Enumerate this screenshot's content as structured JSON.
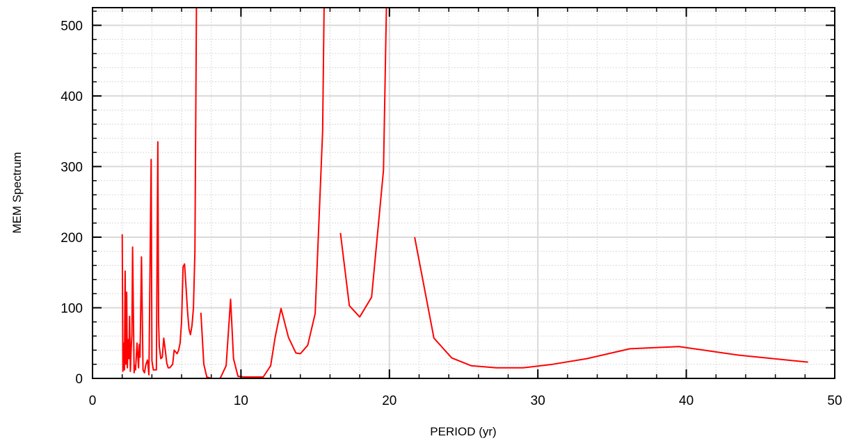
{
  "chart_data": {
    "type": "line",
    "title": "",
    "xlabel": "PERIOD (yr)",
    "ylabel": "MEM Spectrum",
    "xlim": [
      0,
      50
    ],
    "ylim": [
      0,
      525
    ],
    "xticks": [
      0,
      10,
      20,
      30,
      40,
      50
    ],
    "yticks": [
      0,
      100,
      200,
      300,
      400,
      500
    ],
    "grid": true,
    "legend": "none",
    "line_color": "#ff0000",
    "grid_color": "#d9d9d9",
    "segments": [
      {
        "x": [
          2.0,
          2.05,
          2.1,
          2.15,
          2.2,
          2.25,
          2.3,
          2.35,
          2.4,
          2.45,
          2.5,
          2.55,
          2.6,
          2.65,
          2.7,
          2.8,
          2.85,
          2.9,
          3.0,
          3.1,
          3.15,
          3.2,
          3.3,
          3.4,
          3.5,
          3.6,
          3.7,
          3.8,
          3.95,
          4.0,
          4.1,
          4.2,
          4.3,
          4.4,
          4.45,
          4.5,
          4.6,
          4.7,
          4.8,
          4.9,
          5.0,
          5.1,
          5.2,
          5.4,
          5.5,
          5.7,
          5.8,
          5.9,
          6.0,
          6.1,
          6.2,
          6.3,
          6.4,
          6.5,
          6.6,
          6.7,
          6.8,
          6.9,
          7.0,
          7.05,
          7.1,
          7.15
        ],
        "y": [
          204,
          10,
          50,
          12,
          152,
          20,
          122,
          15,
          55,
          28,
          88,
          10,
          40,
          62,
          186,
          8,
          18,
          12,
          50,
          15,
          48,
          30,
          172,
          12,
          8,
          20,
          26,
          5,
          310,
          25,
          12,
          12,
          12,
          335,
          80,
          45,
          28,
          30,
          57,
          40,
          22,
          15,
          15,
          20,
          40,
          35,
          40,
          50,
          80,
          158,
          162,
          130,
          95,
          70,
          62,
          75,
          100,
          180,
          525,
          525,
          525,
          525
        ]
      },
      {
        "x": [
          7.3,
          7.5,
          7.7,
          8.0,
          8.3,
          8.6,
          9.0,
          9.3,
          9.5,
          9.8,
          10.2,
          10.8,
          11.5,
          12.0,
          12.3,
          12.7,
          13.2,
          13.7,
          14.0,
          14.5,
          15.0,
          15.5,
          15.6
        ],
        "y": [
          93,
          20,
          2,
          0,
          0,
          0,
          18,
          112,
          28,
          3,
          2,
          2,
          2,
          18,
          58,
          99,
          58,
          36,
          35,
          47,
          92,
          350,
          525
        ]
      },
      {
        "x": [
          16.7,
          17.3,
          18.0,
          18.8,
          19.6,
          19.8
        ],
        "y": [
          206,
          103,
          87,
          115,
          295,
          525
        ]
      },
      {
        "x": [
          21.7,
          23.0,
          24.2,
          25.5,
          27.2,
          29.0,
          31.0,
          33.3,
          36.2,
          39.5,
          43.5,
          48.2
        ],
        "y": [
          200,
          57,
          29,
          18,
          15,
          15,
          20,
          28,
          42,
          45,
          33,
          23
        ]
      }
    ]
  }
}
